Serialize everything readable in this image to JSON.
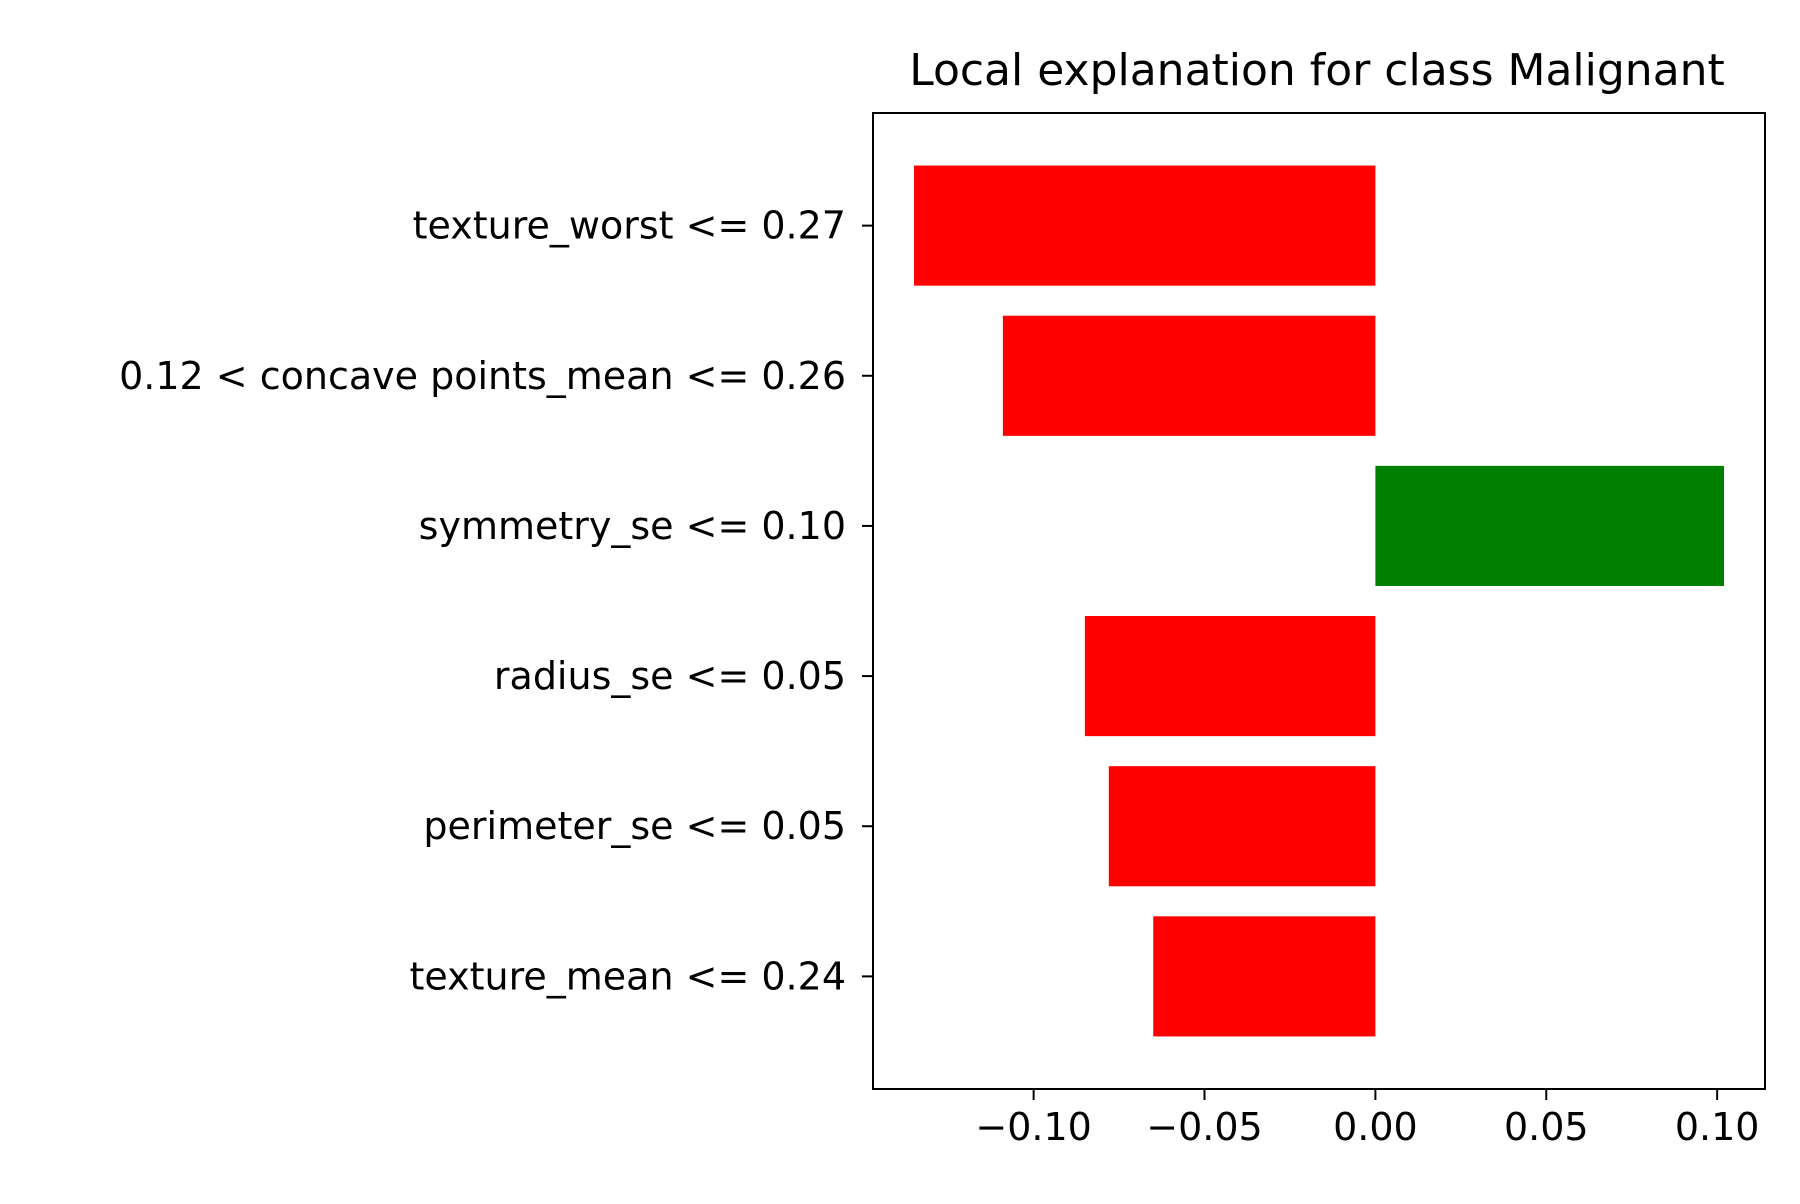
{
  "chart_data": {
    "type": "bar",
    "orientation": "horizontal",
    "title": "Local explanation for class Malignant",
    "xlabel": "",
    "ylabel": "",
    "categories": [
      "texture_worst <= 0.27",
      "0.12 < concave points_mean <= 0.26",
      "symmetry_se <= 0.10",
      "radius_se <= 0.05",
      "perimeter_se <= 0.05",
      "texture_mean <= 0.24"
    ],
    "values": [
      -0.135,
      -0.109,
      0.102,
      -0.085,
      -0.078,
      -0.065
    ],
    "xlim": [
      -0.147,
      0.114
    ],
    "xticks": [
      -0.1,
      -0.05,
      0.0,
      0.05,
      0.1
    ],
    "xtick_labels": [
      "−0.10",
      "−0.05",
      "0.00",
      "0.05",
      "0.10"
    ],
    "grid": false,
    "legend": "none",
    "colors": {
      "positive": "#008000",
      "negative": "#ff0000",
      "axes": "#000000",
      "background": "#ffffff"
    }
  }
}
